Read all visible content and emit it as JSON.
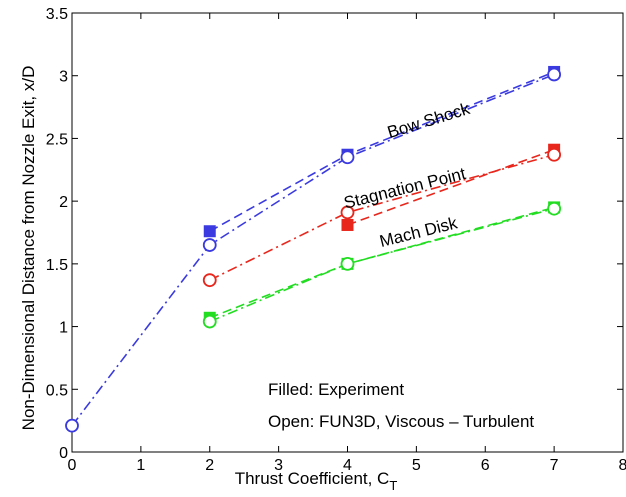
{
  "chart_data": {
    "type": "line",
    "xlabel": "Thrust Coefficient,  C",
    "xlabel_sub": "T",
    "ylabel": "Non-Dimensional Distance from Nozzle Exit, x/D",
    "xlim": [
      0,
      8
    ],
    "ylim": [
      0,
      3.5
    ],
    "xticks": [
      0,
      1,
      2,
      3,
      4,
      5,
      6,
      7,
      8
    ],
    "yticks": [
      0,
      0.5,
      1,
      1.5,
      2,
      2.5,
      3,
      3.5
    ],
    "yticklabels": [
      "0",
      "0.5",
      "1",
      "1.5",
      "2",
      "2.5",
      "3",
      "3.5"
    ],
    "grid": false,
    "series": [
      {
        "key": "bow_exp",
        "group": "Bow Shock",
        "kind": "experiment",
        "marker": "filled-square",
        "linestyle": "dashed",
        "color": "#3a3ae0",
        "x": [
          2,
          4,
          7
        ],
        "y": [
          1.76,
          2.37,
          3.03
        ]
      },
      {
        "key": "bow_cfd",
        "group": "Bow Shock",
        "kind": "fun3d",
        "marker": "open-circle",
        "linestyle": "dashdot",
        "color": "#3a3ae0",
        "x": [
          0,
          2,
          4,
          7
        ],
        "y": [
          0.21,
          1.65,
          2.35,
          3.01
        ]
      },
      {
        "key": "stag_exp",
        "group": "Stagnation Point",
        "kind": "experiment",
        "marker": "filled-square",
        "linestyle": "dashed",
        "color": "#e8261c",
        "x": [
          4,
          7
        ],
        "y": [
          1.81,
          2.41
        ]
      },
      {
        "key": "stag_cfd",
        "group": "Stagnation Point",
        "kind": "fun3d",
        "marker": "open-circle",
        "linestyle": "dashdot",
        "color": "#e8261c",
        "x": [
          2,
          4,
          7
        ],
        "y": [
          1.37,
          1.91,
          2.37
        ]
      },
      {
        "key": "mach_exp",
        "group": "Mach Disk",
        "kind": "experiment",
        "marker": "filled-square",
        "linestyle": "dashed",
        "color": "#22dd22",
        "x": [
          2,
          4,
          7
        ],
        "y": [
          1.07,
          1.5,
          1.95
        ]
      },
      {
        "key": "mach_cfd",
        "group": "Mach Disk",
        "kind": "fun3d",
        "marker": "open-circle",
        "linestyle": "dashdot",
        "color": "#22dd22",
        "x": [
          2,
          4,
          7
        ],
        "y": [
          1.04,
          1.5,
          1.94
        ]
      }
    ],
    "annotations": [
      {
        "key": "bow",
        "text": "Bow Shock",
        "x": 5.2,
        "y": 2.6,
        "angle_deg": -17
      },
      {
        "key": "stag",
        "text": "Stagnation Point",
        "x": 4.85,
        "y": 2.06,
        "angle_deg": -14
      },
      {
        "key": "mach",
        "text": "Mach Disk",
        "x": 5.05,
        "y": 1.71,
        "angle_deg": -14
      }
    ]
  },
  "notes": {
    "filled": "Filled:  Experiment",
    "open": "Open:  FUN3D, Viscous – Turbulent"
  }
}
